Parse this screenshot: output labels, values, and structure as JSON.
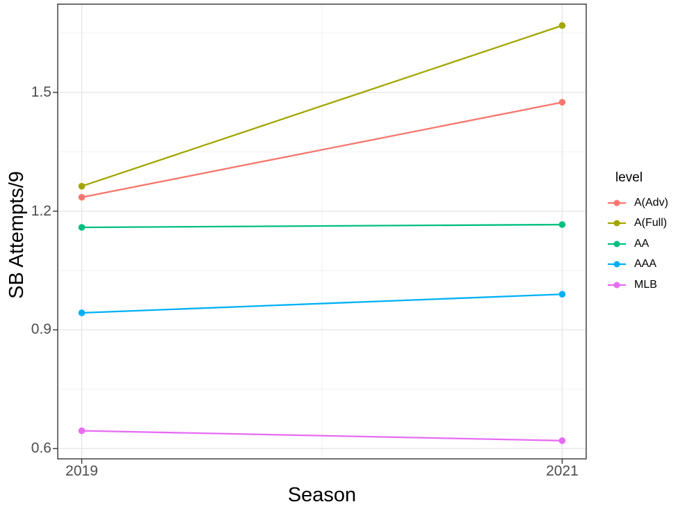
{
  "chart_data": {
    "type": "line",
    "title": "",
    "xlabel": "Season",
    "ylabel": "SB Attempts/9",
    "x": [
      2019,
      2021
    ],
    "x_tick_labels": [
      "2019",
      "2021"
    ],
    "x_minor_ticks": [
      2020
    ],
    "xlim": [
      2018.9,
      2021.1
    ],
    "y_ticks": [
      0.6,
      0.9,
      1.2,
      1.5
    ],
    "y_tick_labels": [
      "0.6",
      "0.9",
      "1.2",
      "1.5"
    ],
    "y_minor_ticks": [
      0.75,
      1.05,
      1.35,
      1.65
    ],
    "ylim": [
      0.574,
      1.723
    ],
    "grid": true,
    "panel_border": true,
    "legend": {
      "title": "level",
      "position": "right"
    },
    "series": [
      {
        "name": "A(Adv)",
        "color": "#F8766D",
        "values": [
          1.235,
          1.475
        ]
      },
      {
        "name": "A(Full)",
        "color": "#A3A500",
        "values": [
          1.263,
          1.669
        ]
      },
      {
        "name": "AA",
        "color": "#00BF7D",
        "values": [
          1.159,
          1.166
        ]
      },
      {
        "name": "AAA",
        "color": "#00B0F6",
        "values": [
          0.943,
          0.99
        ]
      },
      {
        "name": "MLB",
        "color": "#E76BF3",
        "values": [
          0.645,
          0.62
        ]
      }
    ]
  },
  "styles": {
    "background": "#FFFFFF",
    "panel_background": "#FFFFFF",
    "panel_border": "#333333",
    "grid_major": "#E6E6E6",
    "grid_minor": "#F1F1F1",
    "tick_mark": "#333333",
    "tick_label_color": "#4D4D4D",
    "axis_title_color": "#000000"
  }
}
